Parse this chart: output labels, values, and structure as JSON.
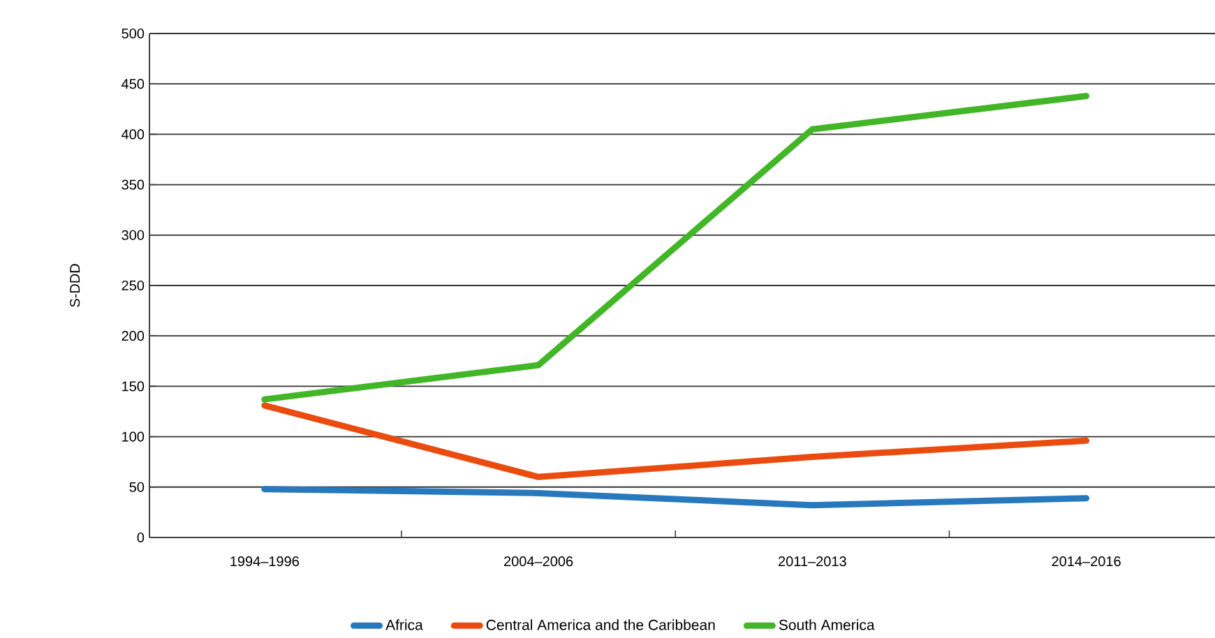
{
  "chart_data": {
    "type": "line",
    "ylabel": "S-DDD",
    "categories": [
      "1994–1996",
      "2004–2006",
      "2011–2013",
      "2014–2016"
    ],
    "series": [
      {
        "name": "Africa",
        "color": "#2878bd",
        "values": [
          48,
          44,
          32,
          39
        ]
      },
      {
        "name": "Central America and the Caribbean",
        "color": "#ea4c10",
        "values": [
          131,
          60,
          80,
          96
        ]
      },
      {
        "name": "South America",
        "color": "#42b627",
        "values": [
          137,
          171,
          405,
          438
        ]
      }
    ],
    "ylim": [
      0,
      500
    ],
    "yticks": [
      0,
      50,
      100,
      150,
      200,
      250,
      300,
      350,
      400,
      450,
      500
    ],
    "grid": "y",
    "legend": "bottom",
    "marker": "none",
    "line_style": "solid"
  }
}
